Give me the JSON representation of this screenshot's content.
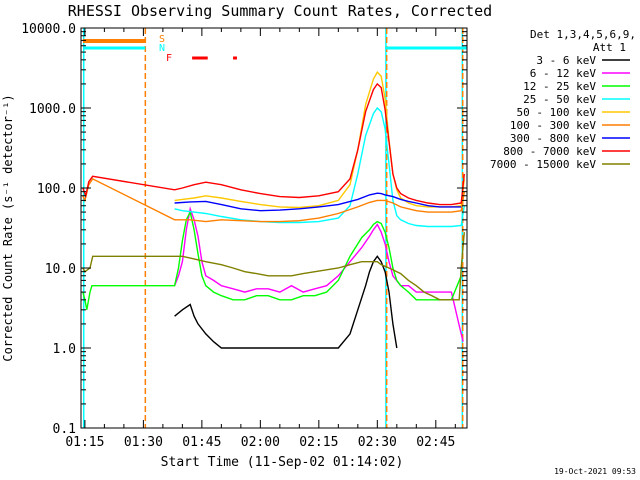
{
  "chart_data": {
    "type": "line",
    "title": "RHESSI Observing Summary Count Rates, Corrected",
    "xlabel": "Start Time (11-Sep-02 01:14:02)",
    "ylabel": "Corrected Count Rate (s⁻¹ detector⁻¹)",
    "x_ticks": [
      "01:15",
      "01:30",
      "01:45",
      "02:00",
      "02:15",
      "02:30",
      "02:45"
    ],
    "x_tick_minutes": [
      75,
      90,
      105,
      120,
      135,
      150,
      165
    ],
    "x_range_minutes": [
      74,
      173
    ],
    "y_scale": "log",
    "ylim": [
      0.1,
      10000
    ],
    "y_ticks": [
      0.1,
      1,
      10,
      100,
      1000,
      10000
    ],
    "y_tick_labels": [
      "0.1",
      "1.0",
      "10.0",
      "100.0",
      "1000.0",
      "10000.0"
    ],
    "legend_title": [
      "Det 1,3,4,5,6,9,",
      "Att 1"
    ],
    "timestamp": "19-Oct-2021 09:53",
    "flag_labels": {
      "S": "S",
      "N": "N",
      "F": "F"
    },
    "series": [
      {
        "name": "3 - 6 keV",
        "color": "#000000",
        "x": [
          74.5,
          76.5,
          76.5,
          98,
          100,
          102,
          103,
          104,
          106,
          108,
          110,
          115,
          120,
          125,
          130,
          135,
          140,
          143,
          145,
          147,
          148,
          149,
          150,
          151,
          152,
          153,
          154,
          155,
          156
        ],
        "y": [
          null,
          null,
          null,
          2.5,
          3,
          3.5,
          2.5,
          2,
          1.5,
          1.2,
          1,
          1,
          1,
          1,
          1,
          1,
          1,
          1.5,
          3,
          6,
          9,
          12,
          14,
          12,
          9,
          5,
          2,
          1,
          null
        ]
      },
      {
        "name": "6 - 12 keV",
        "color": "#ff00ff",
        "x": [
          74.5,
          75.2,
          75.8,
          76.3,
          98,
          99,
          100,
          101,
          102,
          103,
          104,
          105,
          106,
          108,
          110,
          113,
          116,
          119,
          122,
          125,
          128,
          131,
          134,
          137,
          140,
          143,
          146,
          148,
          149,
          150,
          151,
          152,
          153,
          154,
          156,
          158,
          160,
          163,
          166,
          169,
          171.5,
          172
        ],
        "y": [
          null,
          null,
          null,
          null,
          6,
          8,
          12,
          30,
          55,
          40,
          25,
          12,
          8,
          7,
          6,
          5.5,
          5,
          5.5,
          5.5,
          5,
          6,
          5,
          5.5,
          6,
          8,
          12,
          18,
          25,
          30,
          35,
          28,
          20,
          12,
          8,
          6,
          6,
          5,
          5,
          5,
          5,
          1.5,
          1.2
        ]
      },
      {
        "name": "12 - 25 keV",
        "color": "#00ff00",
        "x": [
          74.5,
          75,
          75.5,
          76.3,
          76.8,
          98,
          99,
          100,
          101,
          102,
          103,
          104,
          105,
          106,
          108,
          110,
          113,
          116,
          119,
          122,
          125,
          128,
          131,
          134,
          137,
          140,
          143,
          146,
          148,
          149,
          150,
          151,
          152,
          153,
          154,
          155,
          156,
          158,
          160,
          163,
          166,
          169,
          171.5
        ],
        "y": [
          5,
          4,
          3,
          5,
          6,
          6,
          10,
          22,
          40,
          50,
          30,
          15,
          8,
          6,
          5,
          4.5,
          4,
          4,
          4.5,
          4.5,
          4,
          4,
          4.5,
          4.5,
          5,
          7,
          14,
          24,
          30,
          35,
          38,
          36,
          28,
          18,
          10,
          7,
          6,
          5,
          4,
          4,
          4,
          4,
          8
        ]
      },
      {
        "name": "25 - 50 keV",
        "color": "#00ffff",
        "x": [
          74.5,
          76.5,
          98,
          100,
          103,
          106,
          110,
          115,
          120,
          125,
          130,
          135,
          140,
          143,
          145,
          147,
          149,
          150,
          151,
          152,
          153,
          154,
          155,
          156,
          158,
          160,
          163,
          166,
          169,
          171.5,
          172.3
        ],
        "y": [
          null,
          null,
          55,
          52,
          50,
          48,
          44,
          40,
          38,
          37,
          37,
          38,
          42,
          60,
          150,
          450,
          850,
          1000,
          900,
          550,
          200,
          70,
          45,
          40,
          36,
          34,
          33,
          33,
          33,
          34,
          60
        ]
      },
      {
        "name": "50 - 100 keV",
        "color": "#ffc800",
        "x": [
          74.5,
          76.5,
          98,
          100,
          103,
          106,
          110,
          115,
          120,
          125,
          130,
          135,
          140,
          143,
          145,
          147,
          149,
          150,
          151,
          152,
          153,
          154,
          155,
          156,
          158,
          160,
          163,
          166,
          169,
          171.5,
          172.3
        ],
        "y": [
          null,
          null,
          70,
          72,
          75,
          80,
          75,
          68,
          62,
          58,
          57,
          60,
          70,
          110,
          300,
          1100,
          2300,
          2800,
          2500,
          1300,
          400,
          150,
          95,
          75,
          65,
          60,
          58,
          58,
          58,
          60,
          130
        ]
      },
      {
        "name": "100 - 300 keV",
        "color": "#ff7f00",
        "x": [
          74.5,
          75,
          76,
          77,
          98,
          102,
          106,
          110,
          115,
          120,
          125,
          130,
          135,
          140,
          145,
          148,
          150,
          152,
          154,
          156,
          158,
          160,
          163,
          166,
          169,
          171.5,
          172.3
        ],
        "y": [
          80,
          70,
          110,
          130,
          40,
          40,
          38,
          40,
          39,
          38,
          38,
          39,
          42,
          48,
          58,
          66,
          70,
          70,
          65,
          58,
          55,
          52,
          50,
          50,
          50,
          52,
          90
        ]
      },
      {
        "name": "300 - 800 keV",
        "color": "#0000ff",
        "x": [
          98,
          102,
          106,
          110,
          115,
          120,
          125,
          130,
          135,
          140,
          145,
          148,
          150,
          151,
          152,
          154,
          156,
          158,
          160,
          163,
          166,
          169,
          171.5
        ],
        "y": [
          65,
          67,
          68,
          62,
          55,
          52,
          53,
          55,
          58,
          62,
          72,
          82,
          86,
          85,
          82,
          78,
          72,
          68,
          65,
          60,
          58,
          58,
          58
        ]
      },
      {
        "name": "800 - 7000 keV",
        "color": "#ff0000",
        "x": [
          74.5,
          75.2,
          76,
          77,
          98,
          100,
          103,
          106,
          110,
          115,
          120,
          125,
          130,
          135,
          140,
          143,
          145,
          147,
          149,
          150,
          151,
          152,
          153,
          154,
          155,
          156,
          158,
          160,
          163,
          166,
          169,
          171.5,
          172.3
        ],
        "y": [
          100,
          80,
          120,
          140,
          95,
          100,
          110,
          118,
          110,
          95,
          85,
          78,
          76,
          80,
          90,
          130,
          300,
          900,
          1700,
          2000,
          1800,
          950,
          380,
          150,
          100,
          85,
          75,
          70,
          65,
          62,
          62,
          65,
          150
        ]
      },
      {
        "name": "7000 - 15000 keV",
        "color": "#808000",
        "x": [
          74.5,
          75,
          76.3,
          77,
          98,
          100,
          103,
          106,
          110,
          113,
          116,
          119,
          122,
          125,
          128,
          131,
          134,
          137,
          140,
          143,
          146,
          148,
          149,
          150,
          151,
          152,
          153,
          154,
          155,
          156,
          158,
          160,
          162,
          164,
          166,
          168,
          170,
          171,
          171.5,
          172.3
        ],
        "y": [
          10,
          9,
          10,
          14,
          14,
          14,
          13,
          12,
          11,
          10,
          9,
          8.5,
          8,
          8,
          8,
          8.5,
          9,
          9.5,
          10,
          11,
          12,
          12,
          12,
          12,
          11,
          10.5,
          10,
          9.5,
          9,
          8.5,
          7,
          6,
          5,
          4.5,
          4,
          4,
          4,
          4,
          10,
          28
        ]
      }
    ],
    "flags": [
      {
        "label": "S",
        "color": "#ff7f00",
        "segments": [
          [
            74.5,
            90.5
          ]
        ]
      },
      {
        "label": "N",
        "color": "#00ffff",
        "segments": [
          [
            74.5,
            90.5
          ],
          [
            152,
            173
          ]
        ]
      },
      {
        "label": "F",
        "color": "#ff0000",
        "segments": [
          [
            102.5,
            106.5
          ],
          [
            113,
            114
          ]
        ]
      }
    ],
    "vertical_markers": [
      {
        "color": "#00ffff",
        "style": "solid",
        "x": 74.7
      },
      {
        "color": "#ff7f00",
        "style": "dashed",
        "x": 90.5
      },
      {
        "color": "#00ffff",
        "style": "solid",
        "x": 152.2
      },
      {
        "color": "#ff7f00",
        "style": "dashed",
        "x": 152.4
      },
      {
        "color": "#00ffff",
        "style": "solid",
        "x": 171.8
      },
      {
        "color": "#ff7f00",
        "style": "dashed",
        "x": 171.9
      }
    ]
  }
}
